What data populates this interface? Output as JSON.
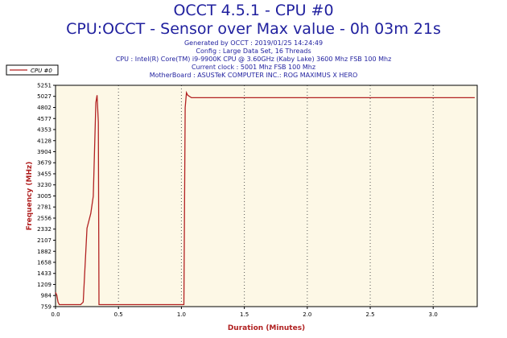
{
  "header": {
    "title": "OCCT 4.5.1 - CPU #0",
    "subtitle": "CPU:OCCT - Sensor over Max value - 0h 03m 21s",
    "info_lines": [
      "Generated by OCCT : 2019/01/25 14:24:49",
      "Config : Large Data Set, 16 Threads",
      "CPU : Intel(R) Core(TM) i9-9900K CPU @ 3.60GHz (Kaby Lake) 3600 Mhz FSB 100 Mhz",
      "Current clock : 5001 Mhz FSB 100 Mhz",
      "MotherBoard : ASUSTeK COMPUTER INC.: ROG MAXIMUS X HERO"
    ]
  },
  "colors": {
    "title": "#1f1f9e",
    "axis_label": "#b02020",
    "series": "#b22222",
    "plot_bg": "#fdf8e6",
    "grid": "#555555"
  },
  "chart_data": {
    "type": "line",
    "xlabel": "Duration (Minutes)",
    "ylabel": "Frequency (MHz)",
    "xlim": [
      0,
      3.35
    ],
    "ylim": [
      759,
      5251
    ],
    "x_ticks": [
      "0.0",
      "0.5",
      "1.0",
      "1.5",
      "2.0",
      "2.5",
      "3.0"
    ],
    "x_tick_values": [
      0,
      0.5,
      1.0,
      1.5,
      2.0,
      2.5,
      3.0
    ],
    "y_ticks": [
      "5251",
      "5027",
      "4802",
      "4577",
      "4353",
      "4128",
      "3904",
      "3679",
      "3455",
      "3230",
      "3005",
      "2781",
      "2556",
      "2332",
      "2107",
      "1882",
      "1658",
      "1433",
      "1209",
      "984",
      "759"
    ],
    "grid": true,
    "legend_position": "top-left",
    "series": [
      {
        "name": "CPU #0",
        "x": [
          0,
          0.01,
          0.02,
          0.03,
          0.1,
          0.2,
          0.22,
          0.25,
          0.28,
          0.3,
          0.32,
          0.33,
          0.34,
          0.345,
          0.5,
          0.8,
          1.0,
          1.02,
          1.03,
          1.04,
          1.05,
          1.08,
          1.2,
          1.6,
          2.0,
          2.5,
          3.0,
          3.33
        ],
        "y": [
          1050,
          990,
          850,
          800,
          800,
          800,
          850,
          2350,
          2650,
          3000,
          4900,
          5050,
          4500,
          800,
          800,
          800,
          800,
          800,
          4800,
          5100,
          5050,
          5000,
          5000,
          5000,
          5000,
          5000,
          5000,
          5000
        ]
      }
    ]
  }
}
